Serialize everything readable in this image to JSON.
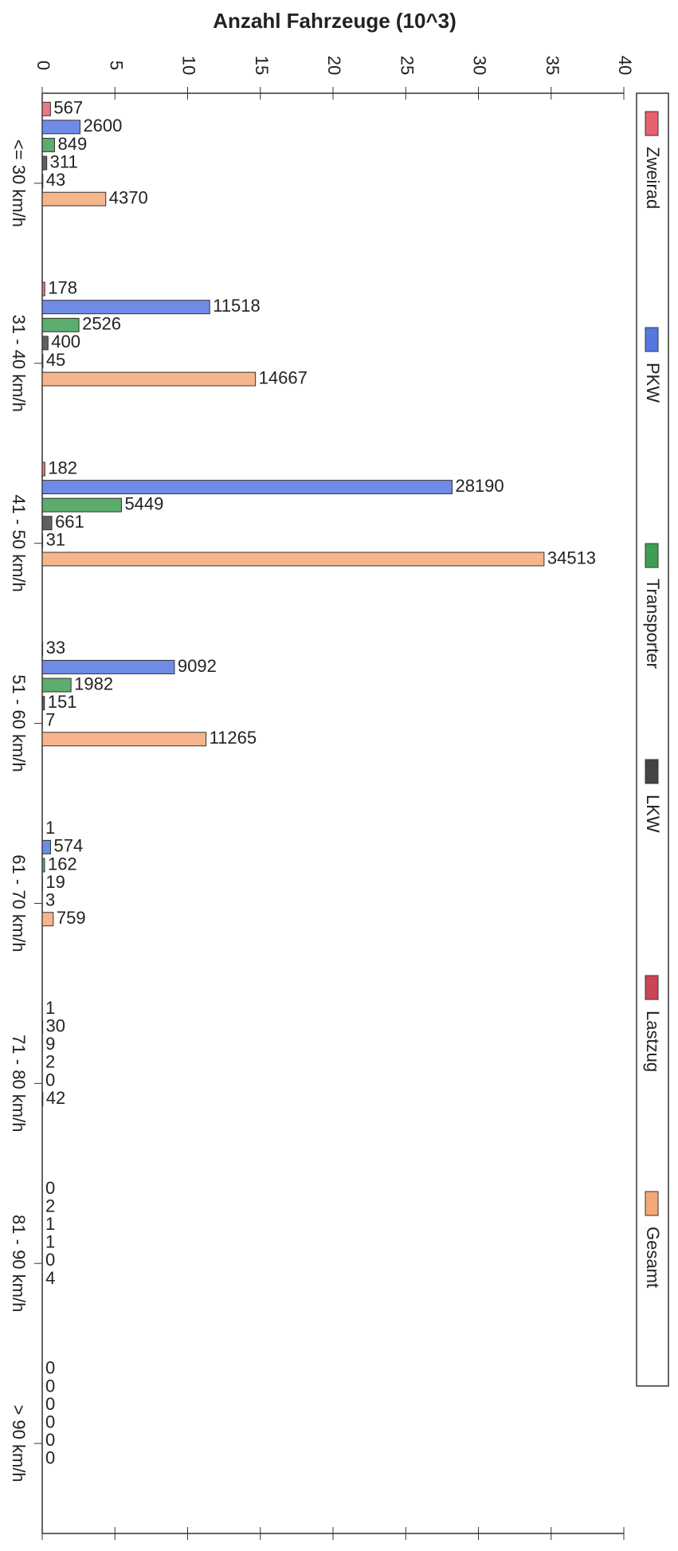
{
  "chart_data": {
    "type": "bar",
    "orientation": "horizontal",
    "title": "Anzahl Fahrzeuge (10^3)",
    "categories": [
      "<= 30 km/h",
      "31 - 40 km/h",
      "41 - 50 km/h",
      "51 - 60 km/h",
      "61 - 70 km/h",
      "71 - 80 km/h",
      "81 - 90 km/h",
      "> 90 km/h"
    ],
    "series": [
      {
        "name": "Zweirad",
        "color": "#e8606e",
        "values": [
          0.567,
          0.178,
          0.182,
          0.033,
          0.001,
          0.001,
          0,
          0
        ],
        "value_labels": [
          "567",
          "178",
          "182",
          "33",
          "1",
          "1",
          "0",
          "0"
        ]
      },
      {
        "name": "PKW",
        "color": "#5577e0",
        "values": [
          2.6,
          11.518,
          28.19,
          9.092,
          0.574,
          0.03,
          0.002,
          0
        ],
        "value_labels": [
          "2600",
          "11518",
          "28190",
          "9092",
          "574",
          "30",
          "2",
          "0"
        ]
      },
      {
        "name": "Transporter",
        "color": "#3f9e55",
        "values": [
          0.849,
          2.526,
          5.449,
          1.982,
          0.162,
          0.009,
          0.001,
          0
        ],
        "value_labels": [
          "849",
          "2526",
          "5449",
          "1982",
          "162",
          "9",
          "1",
          "0"
        ]
      },
      {
        "name": "LKW",
        "color": "#444444",
        "values": [
          0.311,
          0.4,
          0.661,
          0.151,
          0.019,
          0.002,
          0.001,
          0
        ],
        "value_labels": [
          "311",
          "400",
          "661",
          "151",
          "19",
          "2",
          "1",
          "0"
        ]
      },
      {
        "name": "Lastzug",
        "color": "#cc4455",
        "values": [
          0.043,
          0.045,
          0.031,
          0.007,
          0.003,
          0,
          0,
          0
        ],
        "value_labels": [
          "43",
          "45",
          "31",
          "7",
          "3",
          "0",
          "0",
          "0"
        ]
      },
      {
        "name": "Gesamt",
        "color": "#f4a878",
        "values": [
          4.37,
          14.667,
          34.513,
          11.265,
          0.759,
          0.042,
          0.004,
          0
        ],
        "value_labels": [
          "4370",
          "14667",
          "34513",
          "11265",
          "759",
          "42",
          "4",
          "0"
        ]
      }
    ],
    "xlim": [
      0,
      40
    ],
    "xticks": [
      0,
      5,
      10,
      15,
      20,
      25,
      30,
      35,
      40
    ],
    "legend": "right"
  }
}
